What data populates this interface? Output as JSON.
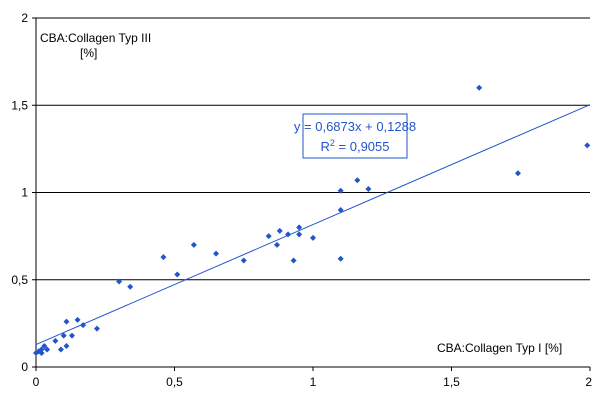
{
  "chart_data": {
    "type": "scatter",
    "ylabel": "CBA:Collagen Typ III",
    "ylabel_unit": "[%]",
    "xlabel": "CBA:Collagen Typ I [%]",
    "xlim": [
      0,
      2
    ],
    "ylim": [
      0,
      2
    ],
    "xticks": [
      0,
      0.5,
      1,
      1.5,
      2
    ],
    "yticks": [
      0,
      0.5,
      1,
      1.5,
      2
    ],
    "xtick_labels": [
      "0",
      "0,5",
      "1",
      "1,5",
      "2"
    ],
    "ytick_labels": [
      "0",
      "0,5",
      "1",
      "1,5",
      "2"
    ],
    "grid": "horizontal",
    "colors": {
      "points": "#2255cc",
      "trendline": "#2255cc",
      "grid": "#000000"
    },
    "trendline": {
      "slope": 0.6873,
      "intercept": 0.1288,
      "equation": "y = 0,6873x + 0,1288",
      "r2_label": "R",
      "r2_sup": "2",
      "r2_value": " = 0,9055"
    },
    "points": [
      [
        0.0,
        0.08
      ],
      [
        0.01,
        0.09
      ],
      [
        0.02,
        0.1
      ],
      [
        0.02,
        0.08
      ],
      [
        0.03,
        0.12
      ],
      [
        0.04,
        0.1
      ],
      [
        0.07,
        0.15
      ],
      [
        0.09,
        0.1
      ],
      [
        0.1,
        0.18
      ],
      [
        0.11,
        0.26
      ],
      [
        0.11,
        0.12
      ],
      [
        0.13,
        0.18
      ],
      [
        0.15,
        0.27
      ],
      [
        0.17,
        0.24
      ],
      [
        0.22,
        0.22
      ],
      [
        0.3,
        0.49
      ],
      [
        0.34,
        0.46
      ],
      [
        0.46,
        0.63
      ],
      [
        0.51,
        0.53
      ],
      [
        0.57,
        0.7
      ],
      [
        0.65,
        0.65
      ],
      [
        0.75,
        0.61
      ],
      [
        0.84,
        0.75
      ],
      [
        0.87,
        0.7
      ],
      [
        0.88,
        0.78
      ],
      [
        0.91,
        0.76
      ],
      [
        0.93,
        0.61
      ],
      [
        0.95,
        0.8
      ],
      [
        0.95,
        0.76
      ],
      [
        1.0,
        0.74
      ],
      [
        1.1,
        0.9
      ],
      [
        1.1,
        1.01
      ],
      [
        1.1,
        0.62
      ],
      [
        1.16,
        1.07
      ],
      [
        1.2,
        1.02
      ],
      [
        1.6,
        1.6
      ],
      [
        1.74,
        1.11
      ],
      [
        1.99,
        1.27
      ]
    ]
  }
}
